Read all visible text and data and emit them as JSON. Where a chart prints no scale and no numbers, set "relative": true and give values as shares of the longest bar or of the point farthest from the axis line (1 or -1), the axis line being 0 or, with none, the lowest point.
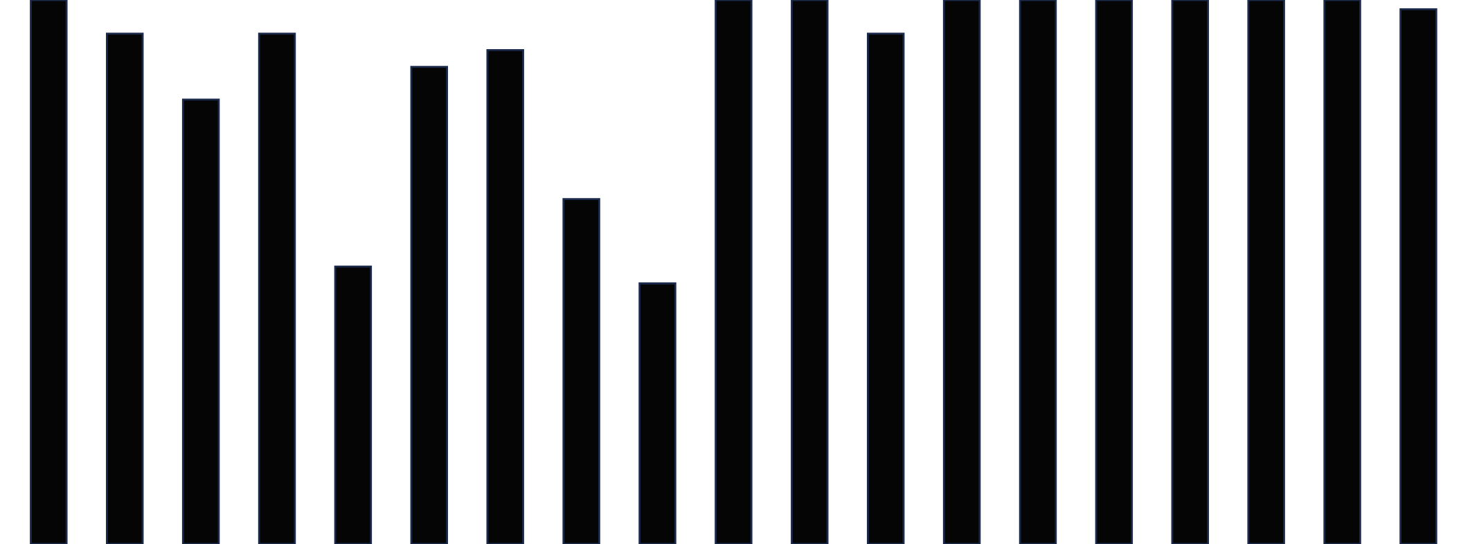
{
  "chart_data": {
    "type": "bar",
    "relative": true,
    "categories": [
      null,
      null,
      null,
      null,
      null,
      null,
      null,
      null,
      null,
      null,
      null,
      null,
      null,
      null,
      null,
      null,
      null,
      null,
      null
    ],
    "values": [
      1,
      0.938,
      0.817,
      0.938,
      0.51,
      0.877,
      0.908,
      0.634,
      0.479,
      1,
      1,
      0.938,
      1,
      1,
      1,
      1,
      1,
      1,
      0.983
    ],
    "color": "#050505",
    "grid": false,
    "legend": false
  }
}
